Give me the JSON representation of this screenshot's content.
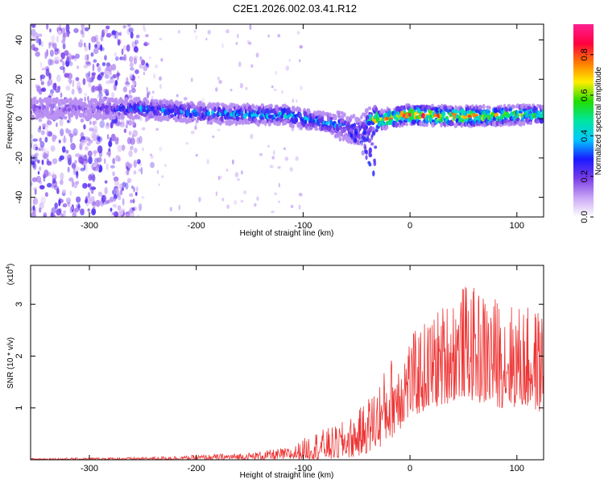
{
  "title": "C2E1.2026.002.03.41.R12",
  "chart_data": [
    {
      "type": "heatmap",
      "name": "spectrogram",
      "xlabel": "Height of straight line (km)",
      "ylabel": "Frequency (Hz)",
      "xlim": [
        -355,
        125
      ],
      "ylim": [
        -50,
        48
      ],
      "xticks": [
        -300,
        -200,
        -100,
        0,
        100
      ],
      "xtick_labels": [
        "-300",
        "-200",
        "-100",
        "0",
        "100"
      ],
      "yticks": [
        -40,
        -20,
        0,
        20,
        40
      ],
      "ytick_labels": [
        "-40",
        "-20",
        "0",
        "20",
        "40"
      ],
      "ridge": {
        "x": [
          -355,
          -300,
          -250,
          -200,
          -150,
          -120,
          -100,
          -80,
          -60,
          -45,
          -35,
          -30,
          0,
          50,
          100,
          125
        ],
        "freq": [
          5,
          5,
          5,
          3,
          2,
          2,
          0,
          -2,
          -4,
          -6,
          0,
          -1,
          2,
          1,
          2,
          2
        ],
        "amplitude": [
          0.2,
          0.2,
          0.4,
          0.4,
          0.45,
          0.5,
          0.45,
          0.45,
          0.35,
          0.3,
          0.6,
          0.85,
          0.9,
          0.85,
          0.7,
          0.6
        ]
      },
      "colorbar": {
        "label": "Normalized spectral amplitude",
        "range": [
          0,
          0.95
        ],
        "ticks": [
          0.0,
          0.2,
          0.4,
          0.6,
          0.8
        ],
        "tick_labels": [
          "0.0",
          "0.2",
          "0.4",
          "0.6",
          "0.8"
        ],
        "colors": [
          "#ffffff",
          "#c9a6f5",
          "#7a3de8",
          "#1a1aff",
          "#00c8ff",
          "#00e6a0",
          "#22dd00",
          "#ffee00",
          "#ff7a00",
          "#ff0040",
          "#ff2090"
        ]
      }
    },
    {
      "type": "line",
      "name": "snr",
      "xlabel": "Height of straight line (km)",
      "ylabel": "SNR (10 * v/v)",
      "scale_label": "(x10",
      "scale_exp": "4",
      "scale_close": ")",
      "xlim": [
        -355,
        125
      ],
      "ylim": [
        0,
        3.75
      ],
      "xticks": [
        -300,
        -200,
        -100,
        0,
        100
      ],
      "xtick_labels": [
        "-300",
        "-200",
        "-100",
        "0",
        "100"
      ],
      "yticks": [
        1,
        2,
        3
      ],
      "ytick_labels": [
        "1",
        "2",
        "3"
      ],
      "line_color": "#ee3333",
      "envelope": {
        "x": [
          -355,
          -250,
          -200,
          -150,
          -110,
          -90,
          -70,
          -50,
          -30,
          -15,
          0,
          25,
          50,
          75,
          100,
          125
        ],
        "upper": [
          0.03,
          0.05,
          0.09,
          0.14,
          0.25,
          0.55,
          0.65,
          0.9,
          1.5,
          2.1,
          2.4,
          2.9,
          3.4,
          3.2,
          3.0,
          2.9
        ],
        "lower": [
          0.0,
          0.0,
          0.0,
          0.0,
          0.0,
          0.0,
          0.0,
          0.05,
          0.2,
          0.45,
          0.8,
          1.0,
          1.2,
          1.0,
          1.0,
          0.9
        ]
      }
    }
  ]
}
